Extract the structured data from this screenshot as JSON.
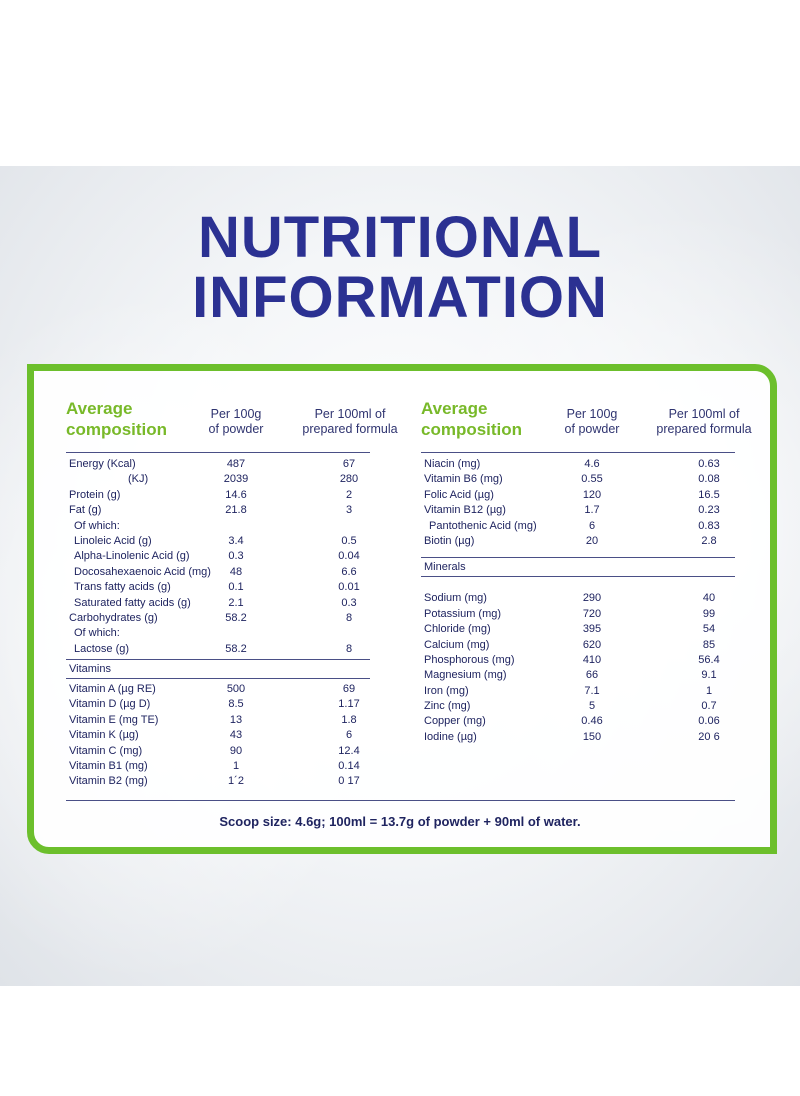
{
  "title": {
    "line1": "NUTRITIONAL",
    "line2": "INFORMATION"
  },
  "colors": {
    "title": "#2b3192",
    "accent_green": "#6cbf2c",
    "text": "#1f2460"
  },
  "left": {
    "heading": {
      "line1": "Average",
      "line2": "composition"
    },
    "col1": {
      "line1": "Per 100g",
      "line2": "of powder"
    },
    "col2": {
      "line1": "Per 100ml of",
      "line2": "prepared formula"
    },
    "rows": [
      [
        "Energy (Kcal)",
        "487",
        "67"
      ],
      [
        "(KJ)",
        "2039",
        "280"
      ],
      [
        "Protein (g)",
        "14.6",
        "2"
      ],
      [
        "Fat (g)",
        "21.8",
        "3"
      ],
      [
        "Of which:",
        "",
        ""
      ],
      [
        "Linoleic Acid (g)",
        "3.4",
        "0.5"
      ],
      [
        "Alpha-Linolenic Acid (g)",
        "0.3",
        "0.04"
      ],
      [
        "Docosahexaenoic Acid (mg)",
        "48",
        "6.6"
      ],
      [
        "Trans fatty acids (g)",
        "0.1",
        "0.01"
      ],
      [
        "Saturated fatty acids (g)",
        "2.1",
        "0.3"
      ],
      [
        "Carbohydrates (g)",
        "58.2",
        "8"
      ],
      [
        "Of which:",
        "",
        ""
      ],
      [
        "Lactose (g)",
        "58.2",
        "8"
      ]
    ],
    "section_label": "Vitamins",
    "vitamin_rows": [
      [
        "Vitamin A (µg RE)",
        "500",
        "69"
      ],
      [
        "Vitamin D (µg D)",
        "8.5",
        "1.17"
      ],
      [
        "Vitamin E (mg TE)",
        "13",
        "1.8"
      ],
      [
        "Vitamin K (µg)",
        "43",
        "6"
      ],
      [
        "Vitamin C (mg)",
        "90",
        "12.4"
      ],
      [
        "Vitamin B1 (mg)",
        "1",
        "0.14"
      ],
      [
        "Vitamin B2 (mg)",
        "1´2",
        "0 17"
      ]
    ]
  },
  "right": {
    "heading": {
      "line1": "Average",
      "line2": "composition"
    },
    "col1": {
      "line1": "Per 100g",
      "line2": "of powder"
    },
    "col2": {
      "line1": "Per 100ml of",
      "line2": "prepared formula"
    },
    "rows": [
      [
        "Niacin (mg)",
        "4.6",
        "0.63"
      ],
      [
        "Vitamin B6 (mg)",
        "0.55",
        "0.08"
      ],
      [
        "Folic Acid (µg)",
        "120",
        "16.5"
      ],
      [
        "Vitamin B12 (µg)",
        "1.7",
        "0.23"
      ],
      [
        "Pantothenic Acid (mg)",
        "6",
        "0.83"
      ],
      [
        "Biotin (µg)",
        "20",
        "2.8"
      ]
    ],
    "section_label": "Minerals",
    "mineral_rows": [
      [
        "Sodium (mg)",
        "290",
        "40"
      ],
      [
        "Potassium (mg)",
        "720",
        "99"
      ],
      [
        "Chloride (mg)",
        "395",
        "54"
      ],
      [
        "Calcium (mg)",
        "620",
        "85"
      ],
      [
        "Phosphorous (mg)",
        "410",
        "56.4"
      ],
      [
        "Magnesium (mg)",
        "66",
        "9.1"
      ],
      [
        "Iron (mg)",
        "7.1",
        "1"
      ],
      [
        "Zinc (mg)",
        "5",
        "0.7"
      ],
      [
        "Copper (mg)",
        "0.46",
        "0.06"
      ],
      [
        "Iodine (µg)",
        "150",
        "20 6"
      ]
    ]
  },
  "scoop_note": "Scoop size: 4.6g; 100ml = 13.7g of powder + 90ml of water."
}
